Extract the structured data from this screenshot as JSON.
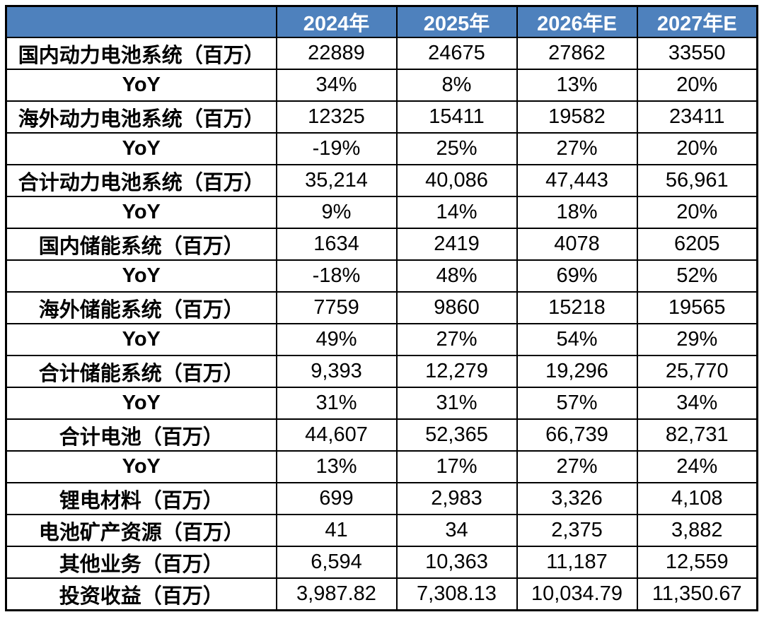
{
  "chart_data": {
    "type": "table",
    "title": "",
    "columns": [
      "",
      "2024年",
      "2025年",
      "2026年E",
      "2027年E"
    ],
    "rows": [
      {
        "label": "国内动力电池系统（百万）",
        "values": [
          "22889",
          "24675",
          "27862",
          "33550"
        ]
      },
      {
        "label": "YoY",
        "values": [
          "34%",
          "8%",
          "13%",
          "20%"
        ]
      },
      {
        "label": "海外动力电池系统（百万）",
        "values": [
          "12325",
          "15411",
          "19582",
          "23411"
        ]
      },
      {
        "label": "YoY",
        "values": [
          "-19%",
          "25%",
          "27%",
          "20%"
        ]
      },
      {
        "label": "合计动力电池系统（百万）",
        "values": [
          "35,214",
          "40,086",
          "47,443",
          "56,961"
        ]
      },
      {
        "label": "YoY",
        "values": [
          "9%",
          "14%",
          "18%",
          "20%"
        ]
      },
      {
        "label": "国内储能系统（百万）",
        "values": [
          "1634",
          "2419",
          "4078",
          "6205"
        ]
      },
      {
        "label": "YoY",
        "values": [
          "-18%",
          "48%",
          "69%",
          "52%"
        ]
      },
      {
        "label": "海外储能系统（百万）",
        "values": [
          "7759",
          "9860",
          "15218",
          "19565"
        ]
      },
      {
        "label": "YoY",
        "values": [
          "49%",
          "27%",
          "54%",
          "29%"
        ]
      },
      {
        "label": "合计储能系统（百万）",
        "values": [
          "9,393",
          "12,279",
          "19,296",
          "25,770"
        ]
      },
      {
        "label": "YoY",
        "values": [
          "31%",
          "31%",
          "57%",
          "34%"
        ]
      },
      {
        "label": "合计电池（百万）",
        "values": [
          "44,607",
          "52,365",
          "66,739",
          "82,731"
        ]
      },
      {
        "label": "YoY",
        "values": [
          "13%",
          "17%",
          "27%",
          "24%"
        ]
      },
      {
        "label": "锂电材料（百万）",
        "values": [
          "699",
          "2,983",
          "3,326",
          "4,108"
        ]
      },
      {
        "label": "电池矿产资源（百万）",
        "values": [
          "41",
          "34",
          "2,375",
          "3,882"
        ]
      },
      {
        "label": "其他业务（百万）",
        "values": [
          "6,594",
          "10,363",
          "11,187",
          "12,559"
        ]
      },
      {
        "label": "投资收益（百万）",
        "values": [
          "3,987.82",
          "7,308.13",
          "10,034.79",
          "11,350.67"
        ]
      }
    ],
    "layout": {
      "header_bg": "#4E81BD",
      "header_text_color": "#FFFFFF",
      "border_color": "#000000",
      "grid": "on"
    }
  }
}
